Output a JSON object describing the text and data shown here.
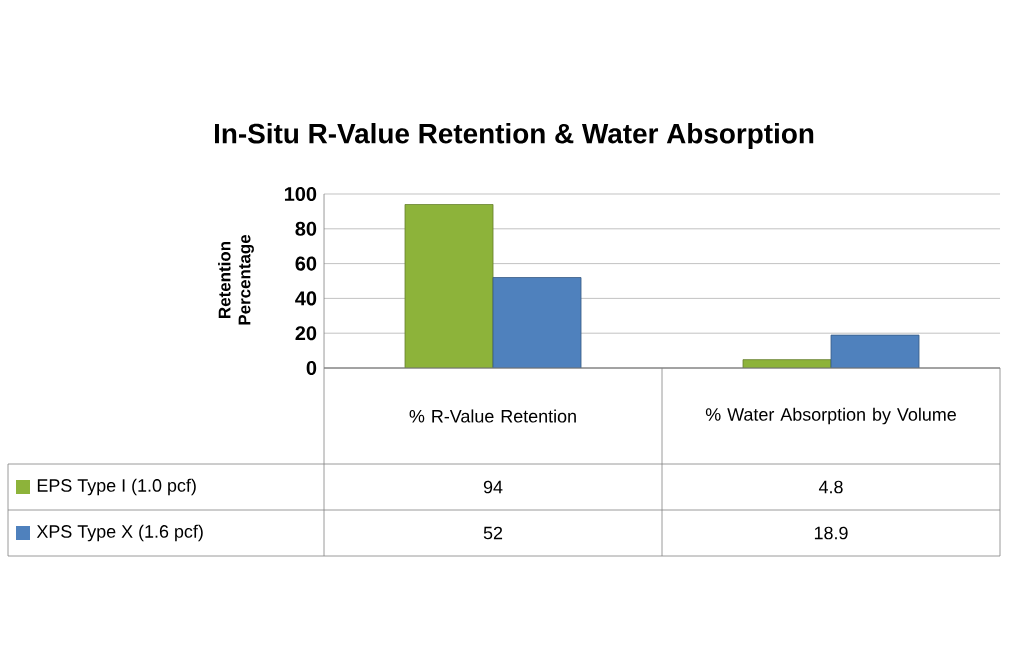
{
  "chart_data": {
    "type": "bar",
    "title": "In-Situ R-Value Retention & Water Absorption",
    "ylabel": "Retention Percentage",
    "categories": [
      "% R-Value Retention",
      "% Water Absorption by Volume"
    ],
    "series": [
      {
        "name": "EPS Type I (1.0 pcf)",
        "color": "#8db33a",
        "values": [
          94,
          4.8
        ]
      },
      {
        "name": "XPS Type X (1.6 pcf)",
        "color": "#4f81bd",
        "values": [
          52,
          18.9
        ]
      }
    ],
    "ylim": [
      0,
      100
    ],
    "yticks": [
      0,
      20,
      40,
      60,
      80,
      100
    ],
    "grid": "y",
    "legend": "bottom left",
    "data_labels": true,
    "tick_labels": "y"
  }
}
